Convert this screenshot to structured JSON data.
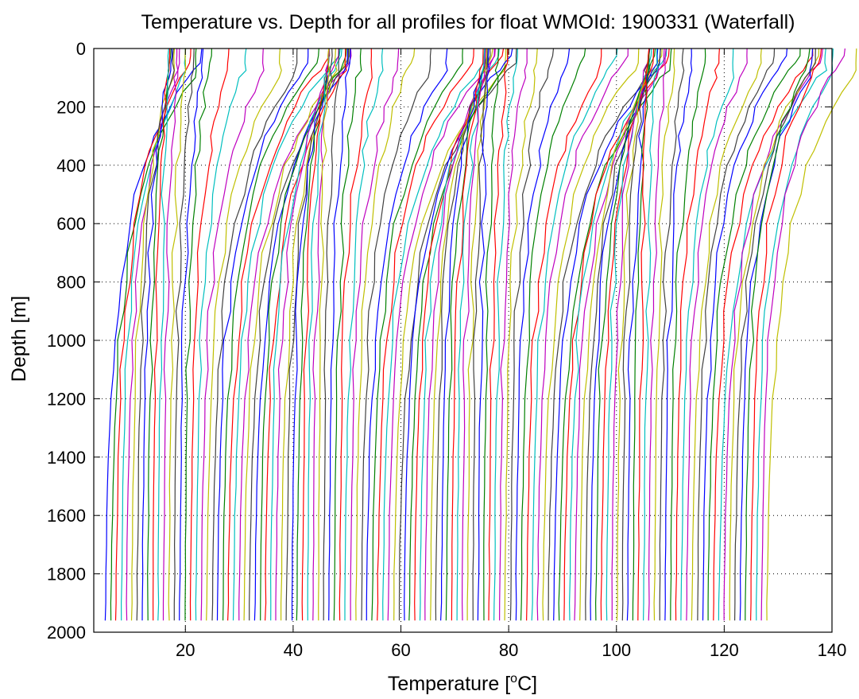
{
  "chart_data": {
    "type": "line",
    "title": "Temperature vs. Depth for all profiles for float WMOId: 1900331 (Waterfall)",
    "xlabel_base": "Temperature [",
    "xlabel_sup": "o",
    "xlabel_unit": "C]",
    "ylabel": "Depth [m]",
    "xlim": [
      3,
      140
    ],
    "ylim": [
      0,
      2000
    ],
    "y_reversed": true,
    "xticks": [
      20,
      40,
      60,
      80,
      100,
      120,
      140
    ],
    "yticks": [
      0,
      200,
      400,
      600,
      800,
      1000,
      1200,
      1400,
      1600,
      1800,
      2000
    ],
    "grid": "dotted",
    "color_cycle": [
      "#0000ff",
      "#008000",
      "#ff0000",
      "#00bfbf",
      "#bf00bf",
      "#bfbf00",
      "#404040"
    ],
    "profile_count": 125,
    "profile_offset_start": 4.8,
    "profile_offset_step": 0.99,
    "depth_levels": [
      0,
      25,
      50,
      75,
      100,
      150,
      200,
      250,
      300,
      350,
      400,
      500,
      600,
      700,
      800,
      900,
      1000,
      1100,
      1200,
      1300,
      1400,
      1500,
      1600,
      1700,
      1800,
      1900,
      1960
    ],
    "season_surface_temps_delta": [
      16,
      6,
      0,
      3,
      14,
      19,
      13,
      5,
      0,
      5,
      15,
      20,
      11,
      4,
      0,
      4,
      14,
      19,
      12,
      5,
      0,
      3,
      11,
      18,
      10
    ]
  }
}
